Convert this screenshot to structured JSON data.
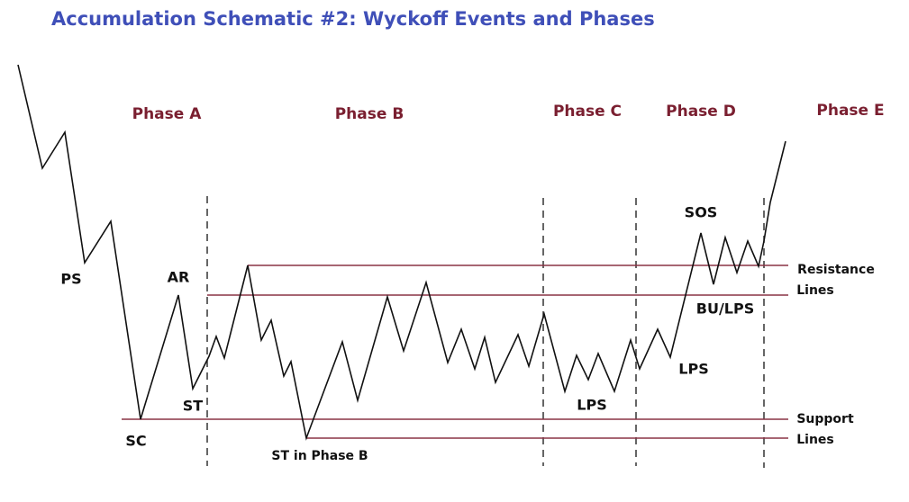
{
  "title": "Accumulation Schematic #2: Wyckoff Events and Phases",
  "phases": [
    "Phase A",
    "Phase B",
    "Phase C",
    "Phase D",
    "Phase E"
  ],
  "events": [
    "PS",
    "AR",
    "ST",
    "SC",
    "ST in Phase B",
    "LPS",
    "LPS",
    "BU/LPS",
    "SOS"
  ],
  "line_labels": {
    "resistance": [
      "Resistance",
      "Lines"
    ],
    "support": [
      "Support",
      "Lines"
    ]
  }
}
